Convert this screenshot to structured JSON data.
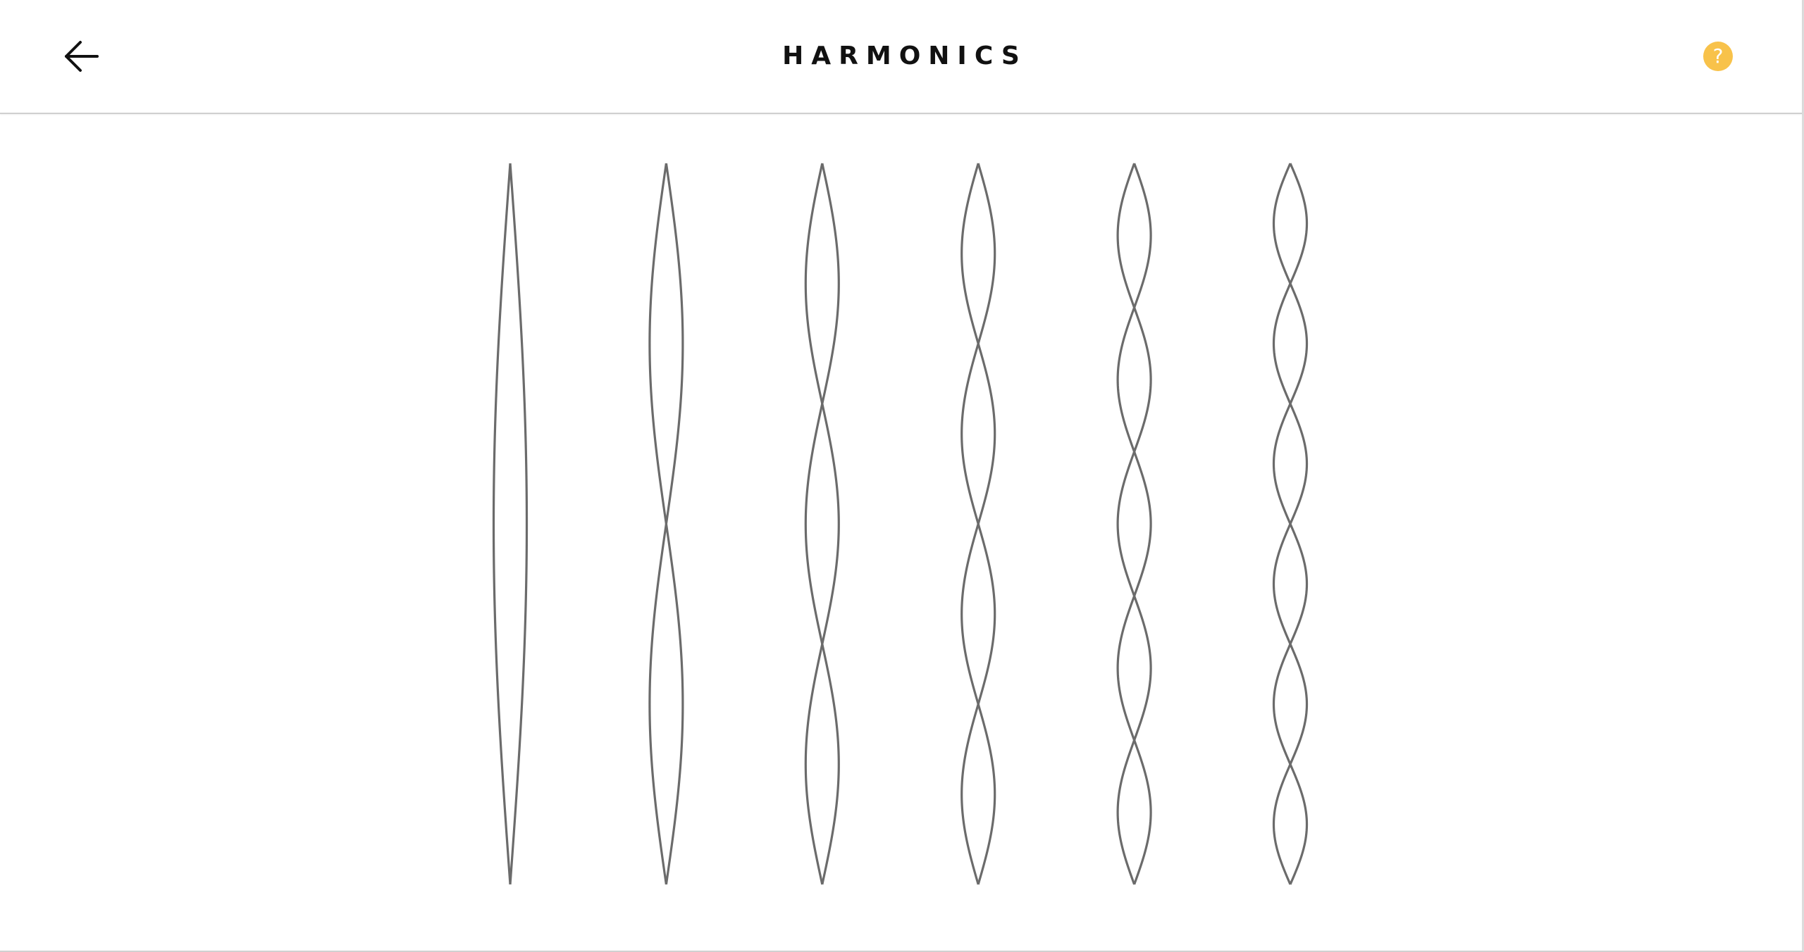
{
  "header": {
    "title": "HARMONICS",
    "back_icon": "arrow-left-icon",
    "help_icon": "question-circle-icon",
    "help_glyph": "?",
    "help_color": "#F8C24A"
  },
  "strings": {
    "stroke_color": "#6b6b6b",
    "harmonics": [
      1,
      2,
      3,
      4,
      5,
      6
    ]
  }
}
